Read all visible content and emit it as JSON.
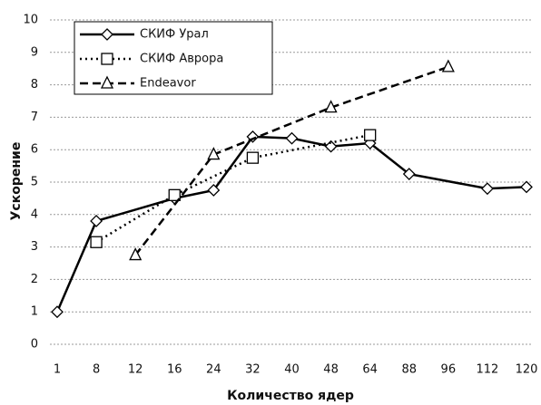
{
  "chart_data": {
    "type": "line",
    "categories": [
      "1",
      "8",
      "12",
      "16",
      "24",
      "32",
      "40",
      "48",
      "64",
      "88",
      "96",
      "112",
      "120"
    ],
    "x_label": "Количество ядер",
    "y_label": "Ускорение",
    "ylim": [
      0,
      10
    ],
    "yticks": [
      0,
      1,
      2,
      3,
      4,
      5,
      6,
      7,
      8,
      9,
      10
    ],
    "grid": true,
    "legend": "top-left",
    "series": [
      {
        "name": "СКИФ Урал",
        "color": "#000000",
        "line": "solid",
        "marker": "diamond",
        "values": [
          1,
          3.8,
          null,
          4.5,
          4.75,
          6.4,
          6.35,
          6.1,
          6.2,
          5.25,
          null,
          4.8,
          4.85
        ]
      },
      {
        "name": "СКИФ Аврора",
        "color": "#000000",
        "line": "dotted",
        "marker": "square",
        "values": [
          null,
          3.15,
          null,
          4.6,
          null,
          5.75,
          null,
          null,
          6.45,
          null,
          null,
          null,
          null
        ]
      },
      {
        "name": "Endeavor",
        "color": "#000000",
        "line": "dashed",
        "marker": "triangle",
        "values": [
          null,
          null,
          2.75,
          null,
          5.85,
          null,
          null,
          7.3,
          null,
          null,
          8.55,
          null,
          null
        ]
      }
    ]
  }
}
